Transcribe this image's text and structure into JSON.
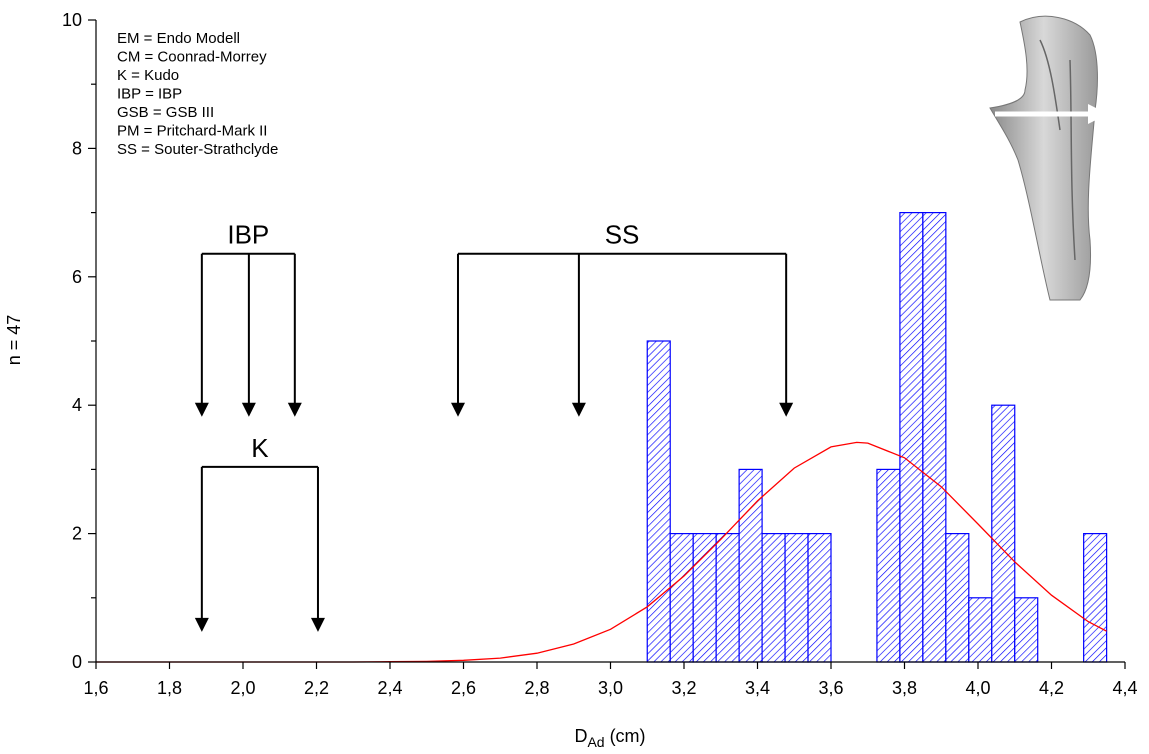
{
  "chart_data": {
    "type": "histogram",
    "x_label": {
      "main": "D",
      "sub": "Ad",
      "unit": "(cm)"
    },
    "y_label": "n = 47",
    "bins": [
      3.1,
      3.1625,
      3.225,
      3.2875,
      3.35,
      3.4125,
      3.475,
      3.5375,
      3.6,
      3.6625,
      3.725,
      3.7875,
      3.85,
      3.9125,
      3.975,
      4.0375,
      4.1,
      4.1625,
      4.225,
      4.2875,
      4.35
    ],
    "values": [
      5,
      2,
      2,
      2,
      3,
      2,
      2,
      2,
      0,
      0,
      3,
      7,
      7,
      2,
      1,
      4,
      1,
      0,
      0,
      2
    ],
    "color": "#0000ff",
    "fit": {
      "color": "#ff0000",
      "x": [
        1.6,
        1.7,
        1.8,
        1.9,
        2.0,
        2.1,
        2.2,
        2.3,
        2.4,
        2.5,
        2.6,
        2.7,
        2.8,
        2.9,
        3.0,
        3.1,
        3.2,
        3.3,
        3.4,
        3.5,
        3.6,
        3.67,
        3.7,
        3.8,
        3.9,
        4.0,
        4.1,
        4.2,
        4.3,
        4.35
      ],
      "values": [
        0,
        0,
        0,
        0,
        0,
        0,
        0,
        0,
        0.004,
        0.01,
        0.026,
        0.06,
        0.137,
        0.28,
        0.51,
        0.86,
        1.34,
        1.91,
        2.51,
        3.02,
        3.35,
        3.42,
        3.41,
        3.18,
        2.73,
        2.15,
        1.56,
        1.04,
        0.63,
        0.48
      ]
    },
    "xlim": [
      1.6,
      4.4
    ],
    "xticks": [
      {
        "value": 1.6,
        "label": "1,6"
      },
      {
        "value": 1.8,
        "label": "1,8"
      },
      {
        "value": 2.0,
        "label": "2,0"
      },
      {
        "value": 2.2,
        "label": "2,2"
      },
      {
        "value": 2.4,
        "label": "2,4"
      },
      {
        "value": 2.6,
        "label": "2,6"
      },
      {
        "value": 2.8,
        "label": "2,8"
      },
      {
        "value": 3.0,
        "label": "3,0"
      },
      {
        "value": 3.2,
        "label": "3,2"
      },
      {
        "value": 3.4,
        "label": "3,4"
      },
      {
        "value": 3.6,
        "label": "3,6"
      },
      {
        "value": 3.8,
        "label": "3,8"
      },
      {
        "value": 4.0,
        "label": "4,0"
      },
      {
        "value": 4.2,
        "label": "4,2"
      },
      {
        "value": 4.4,
        "label": "4,4"
      }
    ],
    "ylim": [
      0,
      10
    ],
    "yticks": [
      0,
      2,
      4,
      6,
      8,
      10
    ],
    "yminor": [
      1,
      3,
      5,
      7,
      9
    ],
    "legend_lines": [
      "EM = Endo Modell",
      "CM = Coonrad-Morrey",
      "K  = Kudo",
      "IBP = IBP",
      "GSB = GSB III",
      "PM  = Pritchard-Mark II",
      "SS  = Souter-Strathclyde"
    ],
    "brackets": [
      {
        "label": "IBP",
        "x": [
          1.888,
          2.016,
          2.141
        ],
        "y_top": 6.36,
        "y_tip": 3.82
      },
      {
        "label": "SS",
        "x": [
          2.585,
          2.914,
          3.478
        ],
        "y_top": 6.36,
        "y_tip": 3.82
      },
      {
        "label": "K",
        "x": [
          1.888,
          2.204
        ],
        "y_top": 3.04,
        "y_tip": 0.47
      }
    ]
  }
}
